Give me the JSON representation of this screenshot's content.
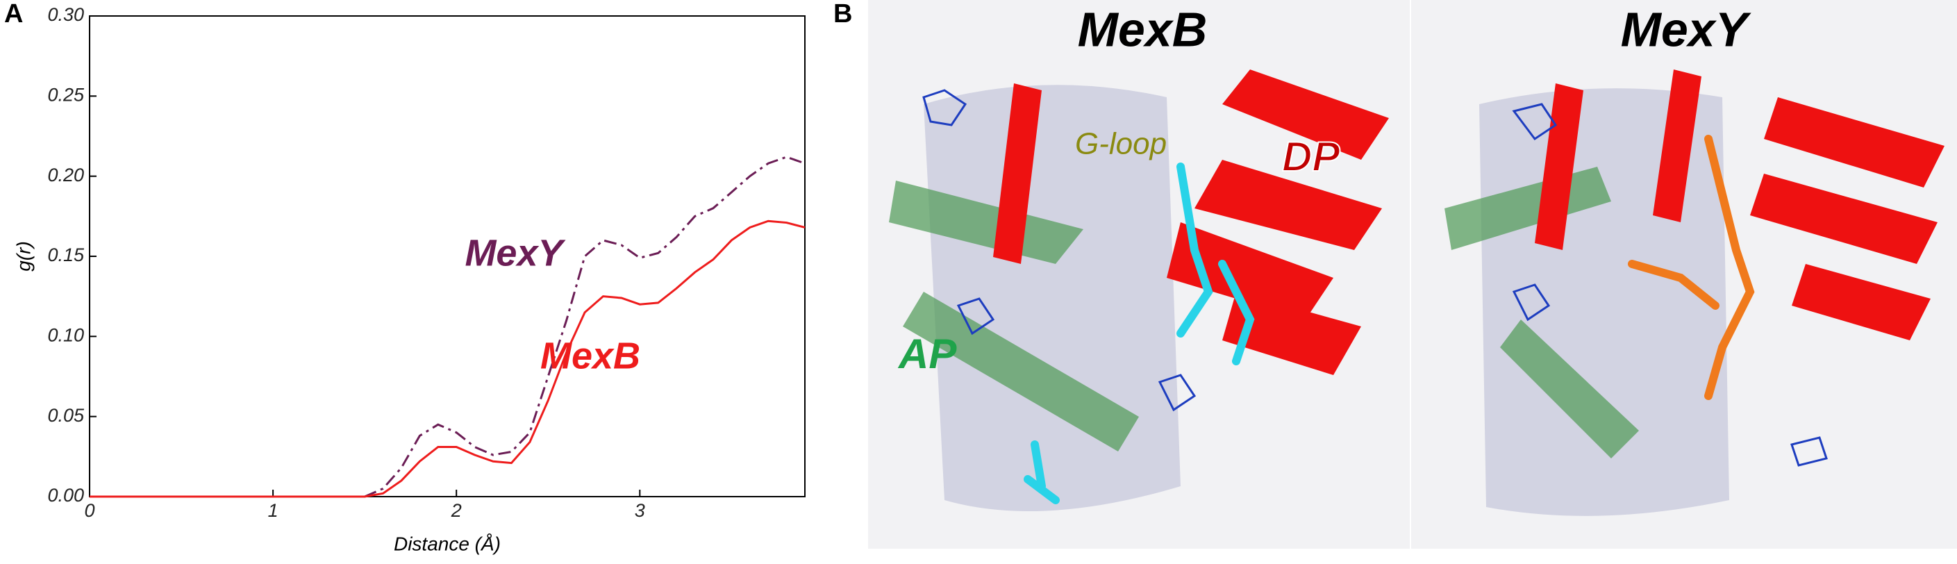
{
  "chart_data": {
    "type": "line",
    "x_label": "Distance (Å)",
    "y_label": "g(r)",
    "x": [
      0,
      1.5,
      1.6,
      1.7,
      1.8,
      1.9,
      2.0,
      2.1,
      2.2,
      2.3,
      2.4,
      2.5,
      2.6,
      2.7,
      2.8,
      2.9,
      3.0,
      3.1,
      3.2,
      3.3,
      3.4,
      3.5,
      3.6,
      3.7,
      3.8,
      3.9
    ],
    "series": [
      {
        "name": "MexY",
        "color": "#6b1d55",
        "style": "dash-dot",
        "values": [
          0,
          0,
          0.005,
          0.018,
          0.038,
          0.045,
          0.04,
          0.031,
          0.026,
          0.028,
          0.04,
          0.075,
          0.11,
          0.15,
          0.16,
          0.157,
          0.149,
          0.152,
          0.162,
          0.175,
          0.18,
          0.19,
          0.2,
          0.208,
          0.212,
          0.208
        ]
      },
      {
        "name": "MexB",
        "color": "#ee1c1c",
        "style": "solid",
        "values": [
          0,
          0,
          0.002,
          0.01,
          0.022,
          0.031,
          0.031,
          0.026,
          0.022,
          0.021,
          0.034,
          0.06,
          0.09,
          0.115,
          0.125,
          0.124,
          0.12,
          0.121,
          0.13,
          0.14,
          0.148,
          0.16,
          0.168,
          0.172,
          0.171,
          0.168
        ]
      }
    ],
    "xlim": [
      0,
      3.9
    ],
    "xticks": [
      0,
      1,
      2,
      3
    ],
    "ylim": [
      0,
      0.3
    ],
    "yticks": [
      {
        "value": 0,
        "label": "0.00"
      },
      {
        "value": 0.05,
        "label": "0.05"
      },
      {
        "value": 0.1,
        "label": "0.10"
      },
      {
        "value": 0.15,
        "label": "0.15"
      },
      {
        "value": 0.2,
        "label": "0.20"
      },
      {
        "value": 0.25,
        "label": "0.25"
      },
      {
        "value": 0.3,
        "label": "0.30"
      }
    ]
  },
  "panel_a": {
    "label": "A"
  },
  "panel_b": {
    "label": "B",
    "titles": [
      "MexB",
      "MexY"
    ],
    "g_loop": "G-loop",
    "dp": "DP",
    "ap": "AP"
  }
}
